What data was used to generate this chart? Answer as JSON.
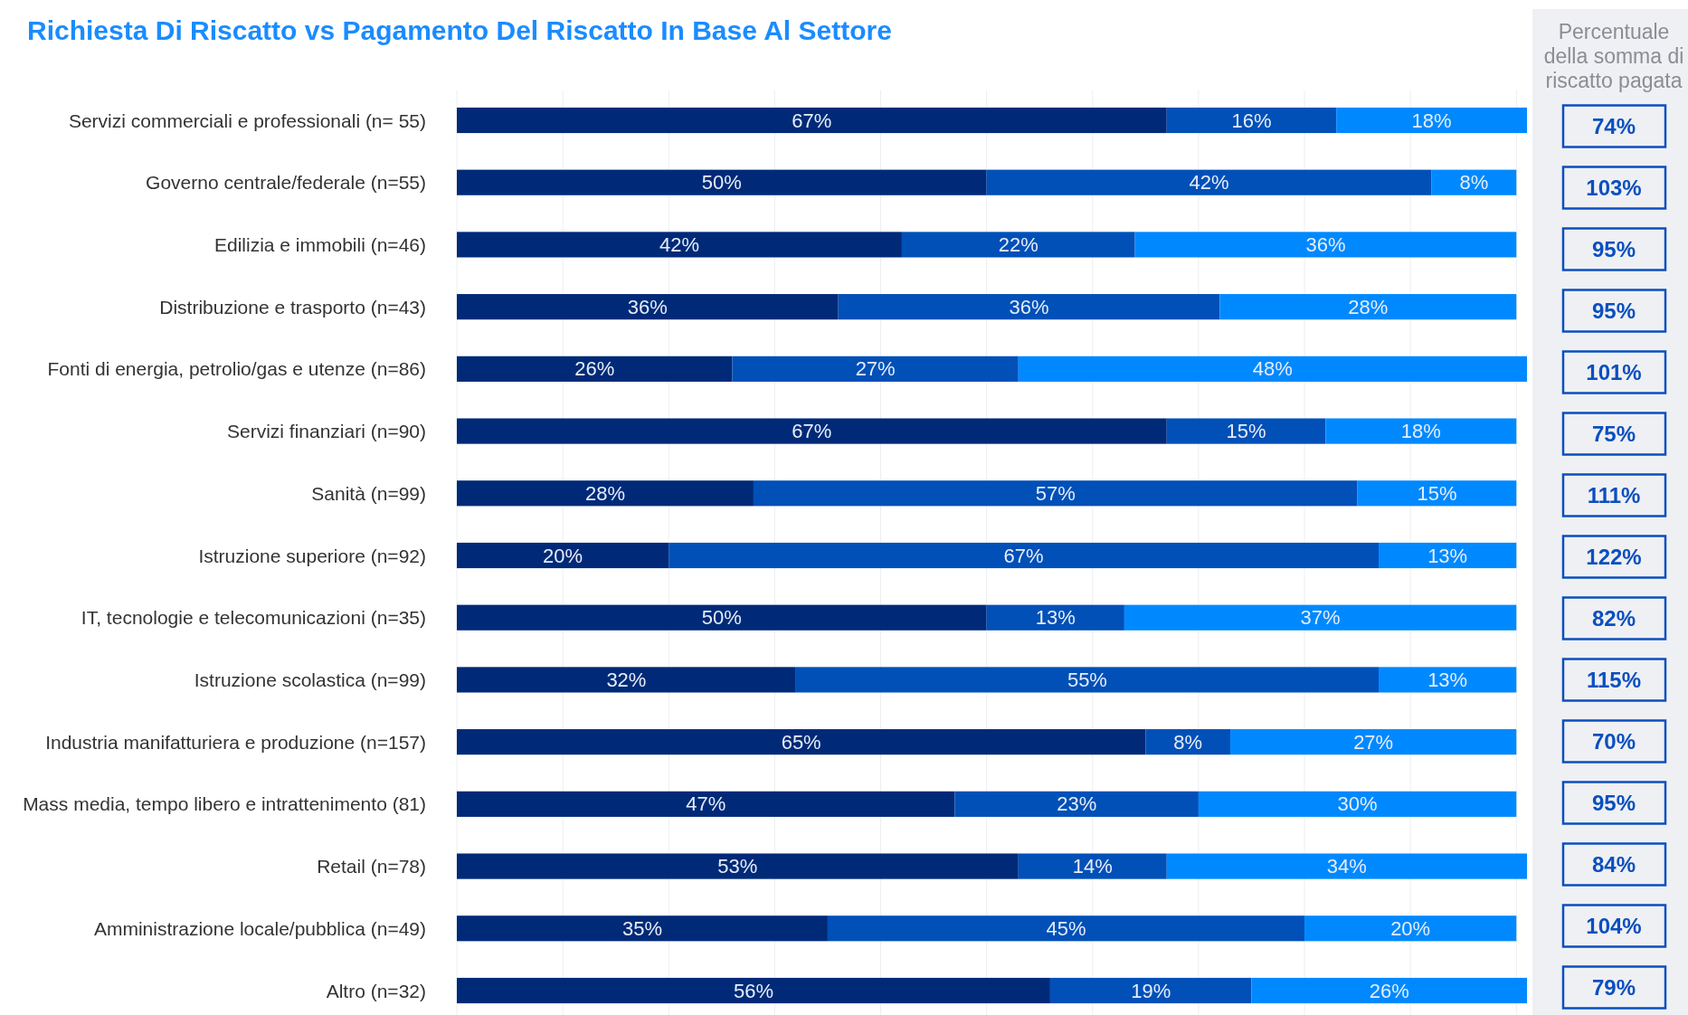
{
  "chart_data": [
    {
      "type": "bar",
      "orientation": "horizontal",
      "stacked": true,
      "title": "Richiesta Di Riscatto vs Pagamento Del Riscatto In Base Al Settore",
      "categories": [
        "Servizi commerciali e professionali (n= 55)",
        "Governo centrale/federale (n=55)",
        "Edilizia e immobili (n=46)",
        "Distribuzione e trasporto (n=43)",
        "Fonti di energia, petrolio/gas e utenze (n=86)",
        "Servizi finanziari (n=90)",
        "Sanità (n=99)",
        "Istruzione superiore (n=92)",
        "IT, tecnologie e telecomunicazioni (n=35)",
        "Istruzione scolastica (n=99)",
        "Industria manifatturiera e produzione (n=157)",
        "Mass media, tempo libero e intrattenimento (81)",
        "Retail (n=78)",
        "Amministrazione locale/pubblica (n=49)",
        "Altro (n=32)"
      ],
      "series": [
        {
          "color": "#002a78",
          "values": [
            67,
            50,
            42,
            36,
            26,
            67,
            28,
            20,
            50,
            32,
            65,
            47,
            53,
            35,
            56
          ],
          "value_labels": [
            "67%",
            "50%",
            "42%",
            "36%",
            "26%",
            "67%",
            "28%",
            "20%",
            "50%",
            "32%",
            "65%",
            "47%",
            "53%",
            "35%",
            "56%"
          ]
        },
        {
          "color": "#0050b8",
          "values": [
            16,
            42,
            22,
            36,
            27,
            15,
            57,
            67,
            13,
            55,
            8,
            23,
            14,
            45,
            19
          ],
          "value_labels": [
            "16%",
            "42%",
            "22%",
            "36%",
            "27%",
            "15%",
            "57%",
            "67%",
            "13%",
            "55%",
            "8%",
            "23%",
            "14%",
            "45%",
            "19%"
          ]
        },
        {
          "color": "#0089ff",
          "values": [
            18,
            8,
            36,
            28,
            48,
            18,
            15,
            13,
            37,
            13,
            27,
            30,
            34,
            20,
            26
          ],
          "value_labels": [
            "18%",
            "8%",
            "36%",
            "28%",
            "48%",
            "18%",
            "15%",
            "13%",
            "37%",
            "13%",
            "27%",
            "30%",
            "34%",
            "20%",
            "26%"
          ]
        }
      ],
      "xlim": [
        0,
        101
      ],
      "xticks": [
        {
          "value": 0,
          "label": null
        },
        {
          "value": 10,
          "label": null
        },
        {
          "value": 20,
          "label": null
        },
        {
          "value": 30,
          "label": null
        },
        {
          "value": 40,
          "label": null
        },
        {
          "value": 50,
          "label": null
        },
        {
          "value": 60,
          "label": null
        },
        {
          "value": 70,
          "label": null
        },
        {
          "value": 80,
          "label": null
        },
        {
          "value": 90,
          "label": null
        },
        {
          "value": 100,
          "label": null
        }
      ],
      "grid": "x",
      "tick_labels": "y"
    },
    {
      "type": "other",
      "title": "Percentuale della somma di riscatto pagata",
      "color": "#0a4fbf",
      "values": [
        74,
        103,
        95,
        95,
        101,
        75,
        111,
        122,
        82,
        115,
        70,
        95,
        84,
        104,
        79
      ],
      "value_labels": [
        "74%",
        "103%",
        "95%",
        "95%",
        "101%",
        "75%",
        "111%",
        "122%",
        "82%",
        "115%",
        "70%",
        "95%",
        "84%",
        "104%",
        "79%"
      ]
    }
  ]
}
